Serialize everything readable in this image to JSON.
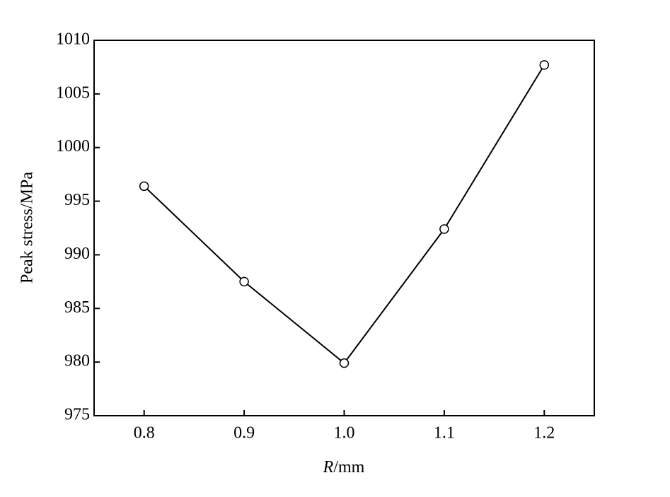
{
  "chart_data": {
    "type": "line",
    "x_label": "R/mm",
    "y_label": "Peak stress/MPa",
    "x": [
      0.8,
      0.9,
      1.0,
      1.1,
      1.2
    ],
    "series": [
      {
        "color": "#000000",
        "values": [
          996.4,
          987.5,
          979.9,
          992.4,
          1007.7
        ]
      }
    ],
    "xlim": [
      0.75,
      1.25
    ],
    "xticks": [
      0.8,
      0.9,
      {
        "value": 1,
        "label": "1.0"
      },
      1.1,
      1.2
    ],
    "ylim": [
      975,
      1010
    ],
    "yticks": [
      975,
      980,
      985,
      990,
      995,
      1000,
      1005,
      1010
    ],
    "grid": false,
    "marker": "open-circle"
  }
}
